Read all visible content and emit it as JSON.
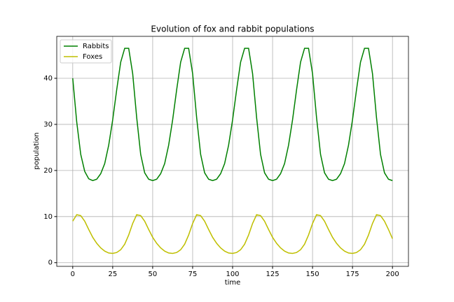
{
  "chart_data": {
    "type": "line",
    "title": "Evolution of fox and rabbit populations",
    "x_label": "time",
    "y_label": "population",
    "x": [
      0,
      2.5,
      5,
      7.5,
      10,
      12.5,
      15,
      17.5,
      20,
      22.5,
      25,
      27.5,
      30,
      32.5,
      35,
      37.5,
      40,
      42.5,
      45,
      47.5,
      50,
      52.5,
      55,
      57.5,
      60,
      62.5,
      65,
      67.5,
      70,
      72.5,
      75,
      77.5,
      80,
      82.5,
      85,
      87.5,
      90,
      92.5,
      95,
      97.5,
      100,
      102.5,
      105,
      107.5,
      110,
      112.5,
      115,
      117.5,
      120,
      122.5,
      125,
      127.5,
      130,
      132.5,
      135,
      137.5,
      140,
      142.5,
      145,
      147.5,
      150,
      152.5,
      155,
      157.5,
      160,
      162.5,
      165,
      167.5,
      170,
      172.5,
      175,
      177.5,
      180,
      182.5,
      185,
      187.5,
      190,
      192.5,
      195,
      197.5,
      200
    ],
    "series": [
      {
        "name": "Rabbits",
        "color": "#008000",
        "values": [
          40,
          30.5,
          23.5,
          19.8,
          18.2,
          17.8,
          18.1,
          19.3,
          21.5,
          25.5,
          31,
          37.5,
          43.5,
          46.5,
          46.5,
          41,
          31.5,
          23.5,
          19.5,
          18.1,
          17.8,
          18.1,
          19.3,
          21.5,
          25.5,
          31,
          37.5,
          43.5,
          46.5,
          46.5,
          41,
          31.5,
          23.5,
          19.5,
          18.1,
          17.8,
          18.1,
          19.3,
          21.5,
          25.5,
          31,
          37.5,
          43.5,
          46.5,
          46.5,
          41,
          31.5,
          23.5,
          19.5,
          18.1,
          17.8,
          18.1,
          19.3,
          21.5,
          25.5,
          31,
          37.5,
          43.5,
          46.5,
          46.5,
          41,
          31.5,
          23.5,
          19.5,
          18.1,
          17.8,
          18.1,
          19.3,
          21.5,
          25.5,
          31,
          37.5,
          43.5,
          46.5,
          46.5,
          41,
          31.5,
          23.5,
          19.5,
          18.1,
          17.8
        ]
      },
      {
        "name": "Foxes",
        "color": "#bfbf00",
        "values": [
          9,
          10.4,
          10.2,
          9,
          7.2,
          5.5,
          4.2,
          3.2,
          2.5,
          2.1,
          2.0,
          2.2,
          2.8,
          4.0,
          6.0,
          8.5,
          10.4,
          10.2,
          9,
          7.2,
          5.5,
          4.2,
          3.2,
          2.5,
          2.1,
          2.0,
          2.2,
          2.8,
          4.0,
          6.0,
          8.5,
          10.4,
          10.2,
          9,
          7.2,
          5.5,
          4.2,
          3.2,
          2.5,
          2.1,
          2.0,
          2.2,
          2.8,
          4.0,
          6.0,
          8.5,
          10.4,
          10.2,
          9,
          7.2,
          5.5,
          4.2,
          3.2,
          2.5,
          2.1,
          2.0,
          2.2,
          2.8,
          4.0,
          6.0,
          8.5,
          10.4,
          10.2,
          9,
          7.2,
          5.5,
          4.2,
          3.2,
          2.5,
          2.1,
          2.0,
          2.2,
          2.8,
          4.0,
          6.0,
          8.5,
          10.4,
          10.2,
          9,
          7.2,
          5.2
        ]
      }
    ],
    "xlim": [
      -10,
      210
    ],
    "ylim": [
      -0.8,
      49.1
    ],
    "xticks": [
      0,
      25,
      50,
      75,
      100,
      125,
      150,
      175,
      200
    ],
    "yticks": [
      0,
      10,
      20,
      30,
      40
    ],
    "grid": true,
    "legend": "upper-left"
  }
}
